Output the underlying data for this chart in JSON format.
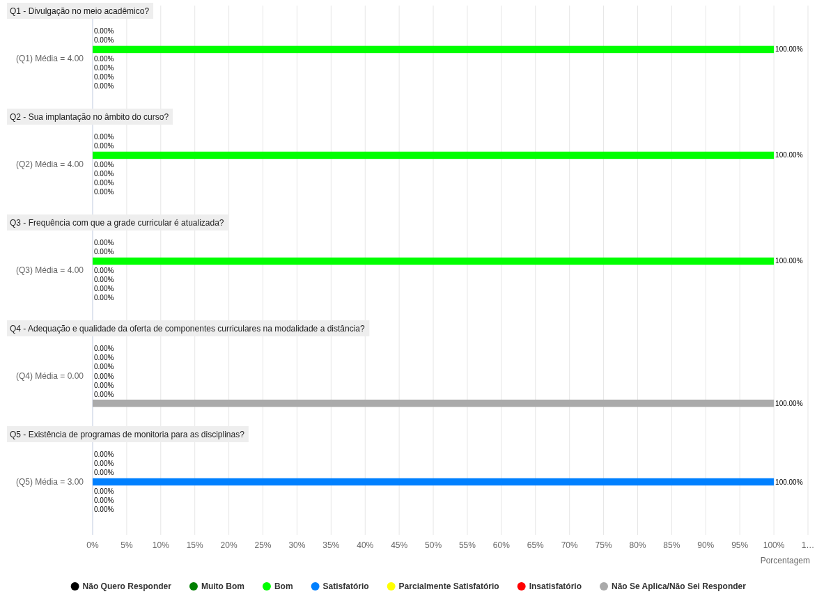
{
  "chart_data": {
    "type": "bar",
    "orientation": "horizontal",
    "xlabel": "Porcentagem",
    "categories": [
      "(Q1) Média = 4.00",
      "(Q2) Média = 4.00",
      "(Q3) Média = 4.00",
      "(Q4) Média = 0.00",
      "(Q5) Média = 3.00"
    ],
    "series": [
      {
        "name": "Não Quero Responder",
        "color": "#000000",
        "values": [
          0,
          0,
          0,
          0,
          0
        ],
        "value_labels": [
          "0.00%",
          "0.00%",
          "0.00%",
          "0.00%",
          "0.00%"
        ]
      },
      {
        "name": "Muito Bom",
        "color": "#008000",
        "values": [
          0,
          0,
          0,
          0,
          0
        ],
        "value_labels": [
          "0.00%",
          "0.00%",
          "0.00%",
          "0.00%",
          "0.00%"
        ]
      },
      {
        "name": "Bom",
        "color": "#00ff00",
        "values": [
          100,
          100,
          100,
          0,
          0
        ],
        "value_labels": [
          "100.00%",
          "100.00%",
          "100.00%",
          "0.00%",
          "0.00%"
        ]
      },
      {
        "name": "Satisfatório",
        "color": "#0080ff",
        "values": [
          0,
          0,
          0,
          0,
          100
        ],
        "value_labels": [
          "0.00%",
          "0.00%",
          "0.00%",
          "0.00%",
          "100.00%"
        ]
      },
      {
        "name": "Parcialmente Satisfatório",
        "color": "#ffff00",
        "values": [
          0,
          0,
          0,
          0,
          0
        ],
        "value_labels": [
          "0.00%",
          "0.00%",
          "0.00%",
          "0.00%",
          "0.00%"
        ]
      },
      {
        "name": "Insatisfatório",
        "color": "#ff0000",
        "values": [
          0,
          0,
          0,
          0,
          0
        ],
        "value_labels": [
          "0.00%",
          "0.00%",
          "0.00%",
          "0.00%",
          "0.00%"
        ]
      },
      {
        "name": "Não Se Aplica/Não Sei Responder",
        "color": "#aaaaaa",
        "values": [
          0,
          0,
          0,
          100,
          0
        ],
        "value_labels": [
          "0.00%",
          "0.00%",
          "0.00%",
          "100.00%",
          "0.00%"
        ]
      }
    ],
    "xlim": [
      0,
      105
    ],
    "xticks": [
      {
        "value": 0,
        "label": "0%"
      },
      {
        "value": 5,
        "label": "5%"
      },
      {
        "value": 10,
        "label": "10%"
      },
      {
        "value": 15,
        "label": "15%"
      },
      {
        "value": 20,
        "label": "20%"
      },
      {
        "value": 25,
        "label": "25%"
      },
      {
        "value": 30,
        "label": "30%"
      },
      {
        "value": 35,
        "label": "35%"
      },
      {
        "value": 40,
        "label": "40%"
      },
      {
        "value": 45,
        "label": "45%"
      },
      {
        "value": 50,
        "label": "50%"
      },
      {
        "value": 55,
        "label": "55%"
      },
      {
        "value": 60,
        "label": "60%"
      },
      {
        "value": 65,
        "label": "65%"
      },
      {
        "value": 70,
        "label": "70%"
      },
      {
        "value": 75,
        "label": "75%"
      },
      {
        "value": 80,
        "label": "80%"
      },
      {
        "value": 85,
        "label": "85%"
      },
      {
        "value": 90,
        "label": "90%"
      },
      {
        "value": 95,
        "label": "95%"
      },
      {
        "value": 100,
        "label": "100%"
      },
      {
        "value": 105,
        "label": "1…"
      }
    ],
    "grid": "x",
    "legend": "bottom",
    "annotations": [
      "Q1 - Divulgação no meio acadêmico?",
      "Q2 - Sua implantação no âmbito do curso?",
      "Q3 - Frequência com que a grade curricular é atualizada?",
      "Q4 - Adequação e qualidade da oferta de componentes curriculares na modalidade a distância?",
      "Q5 - Existência de programas de monitoria para as disciplinas?"
    ]
  }
}
